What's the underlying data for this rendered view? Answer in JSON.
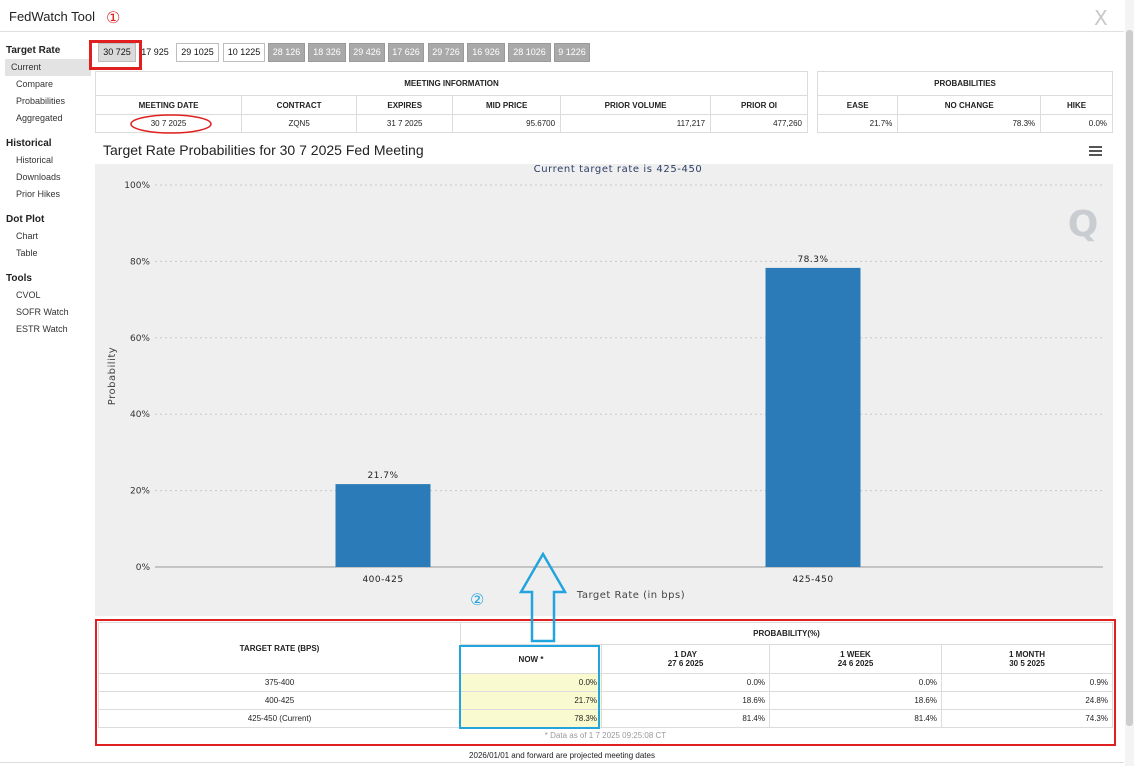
{
  "app": {
    "title": "FedWatch Tool",
    "close_icon": "X"
  },
  "annotations": {
    "marker1": "①",
    "marker2": "②"
  },
  "sidebar": {
    "groups": [
      {
        "title": "Target Rate",
        "items": [
          "Current",
          "Compare",
          "Probabilities",
          "Aggregated"
        ]
      },
      {
        "title": "Historical",
        "items": [
          "Historical",
          "Downloads",
          "Prior Hikes"
        ]
      },
      {
        "title": "Dot Plot",
        "items": [
          "Chart",
          "Table"
        ]
      },
      {
        "title": "Tools",
        "items": [
          "CVOL",
          "SOFR Watch",
          "ESTR Watch"
        ]
      }
    ]
  },
  "tabs": [
    "30 725",
    "17 925",
    "29 1025",
    "10 1225",
    "28 126",
    "18 326",
    "29 426",
    "17 626",
    "29 726",
    "16 926",
    "28 1026",
    "9 1226"
  ],
  "meeting_info": {
    "header": "MEETING INFORMATION",
    "columns": [
      "MEETING DATE",
      "CONTRACT",
      "EXPIRES",
      "MID PRICE",
      "PRIOR VOLUME",
      "PRIOR OI"
    ],
    "values": [
      "30 7 2025",
      "ZQN5",
      "31 7 2025",
      "95.6700",
      "117,217",
      "477,260"
    ]
  },
  "probabilities": {
    "header": "PROBABILITIES",
    "columns": [
      "EASE",
      "NO CHANGE",
      "HIKE"
    ],
    "values": [
      "21.7%",
      "78.3%",
      "0.0%"
    ]
  },
  "chart_title": "Target Rate Probabilities for 30 7 2025 Fed Meeting",
  "chart_data": {
    "type": "bar",
    "title": "Current target rate is 425-450",
    "categories": [
      "400-425",
      "425-450"
    ],
    "values": [
      21.7,
      78.3
    ],
    "data_labels": [
      "21.7%",
      "78.3%"
    ],
    "xlabel": "Target Rate (in bps)",
    "ylabel": "Probability",
    "ylim": [
      0,
      100
    ],
    "yticks": [
      0,
      20,
      40,
      60,
      80,
      100
    ],
    "ytick_labels": [
      "0%",
      "20%",
      "40%",
      "60%",
      "80%",
      "100%"
    ],
    "grid": true,
    "bar_color": "#2b7bb9",
    "watermark": "Q"
  },
  "prob_table": {
    "target_header": "TARGET RATE (BPS)",
    "prob_header": "PROBABILITY(%)",
    "now_label": "NOW *",
    "periods": [
      {
        "label": "1 DAY",
        "date": "27 6 2025"
      },
      {
        "label": "1 WEEK",
        "date": "24 6 2025"
      },
      {
        "label": "1 MONTH",
        "date": "30 5 2025"
      }
    ],
    "rows": [
      {
        "rate": "375-400",
        "now": "0.0%",
        "d1": "0.0%",
        "w1": "0.0%",
        "m1": "0.9%"
      },
      {
        "rate": "400-425",
        "now": "21.7%",
        "d1": "18.6%",
        "w1": "18.6%",
        "m1": "24.8%"
      },
      {
        "rate": "425-450 (Current)",
        "now": "78.3%",
        "d1": "81.4%",
        "w1": "81.4%",
        "m1": "74.3%"
      }
    ],
    "data_note": "* Data as of 1 7 2025 09:25:08 CT"
  },
  "footer_note": "2026/01/01 and forward are projected meeting dates",
  "colors": {
    "annotation_red": "#e02020",
    "annotation_blue": "#22a4de",
    "bar": "#2b7bb9",
    "now_highlight": "#fafad0"
  }
}
